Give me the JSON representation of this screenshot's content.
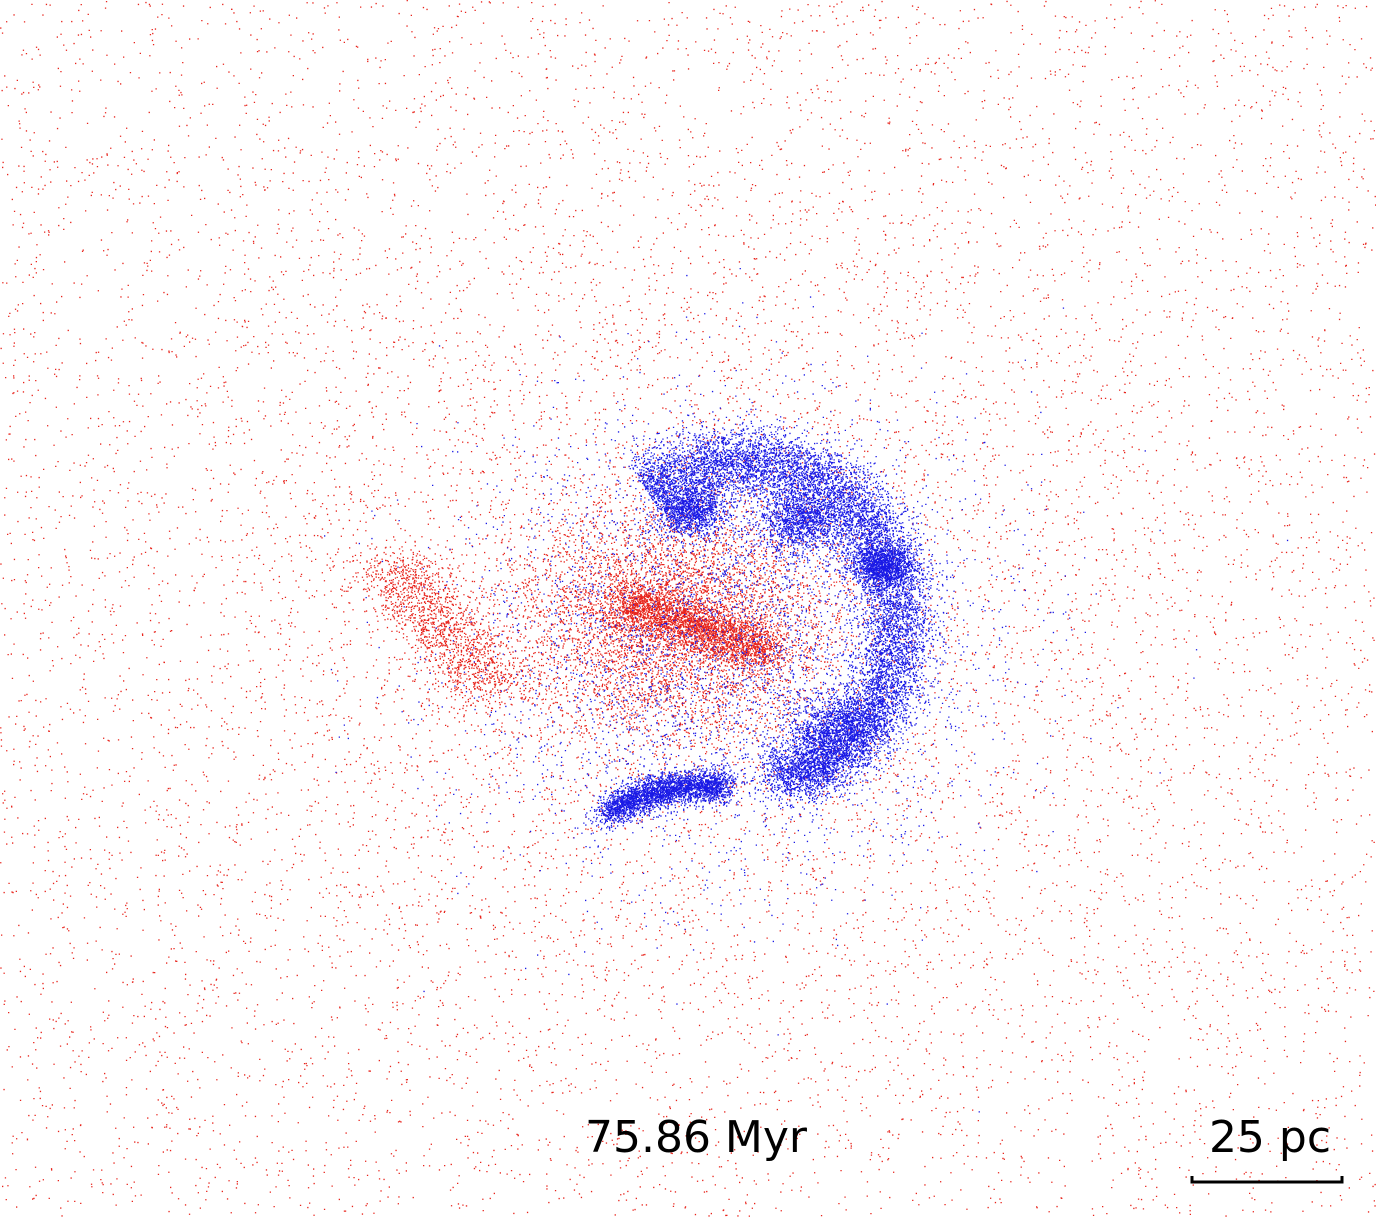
{
  "time_label": "75.86 Myr",
  "scale_bar": {
    "label": "25 pc"
  }
}
